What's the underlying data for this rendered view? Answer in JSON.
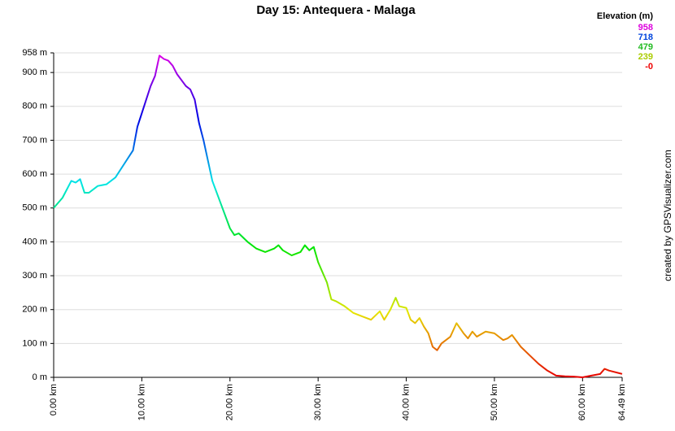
{
  "chart_data": {
    "type": "line",
    "title": "Day 15: Antequera - Malaga",
    "credit": "created by GPSVisualizer.com",
    "legend": {
      "title": "Elevation (m)",
      "entries": [
        {
          "value": 958,
          "label": "958",
          "color": "#dd00dd"
        },
        {
          "value": 718,
          "label": "718",
          "color": "#0044dd"
        },
        {
          "value": 479,
          "label": "479",
          "color": "#22bb22"
        },
        {
          "value": 239,
          "label": "239",
          "color": "#aacc00"
        },
        {
          "value": 0,
          "label": "-0",
          "color": "#ee0000"
        }
      ]
    },
    "grid": true,
    "xlim": [
      0,
      64.49
    ],
    "ylim": [
      0,
      958
    ],
    "xticks": [
      {
        "value": 0,
        "label": "0.00 km"
      },
      {
        "value": 10,
        "label": "10.00 km"
      },
      {
        "value": 20,
        "label": "20.00 km"
      },
      {
        "value": 30,
        "label": "30.00 km"
      },
      {
        "value": 40,
        "label": "40.00 km"
      },
      {
        "value": 50,
        "label": "50.00 km"
      },
      {
        "value": 60,
        "label": "60.00 km"
      },
      {
        "value": 64.49,
        "label": "64.49 km"
      }
    ],
    "yticks": [
      {
        "value": 0,
        "label": "0 m"
      },
      {
        "value": 100,
        "label": "100 m"
      },
      {
        "value": 200,
        "label": "200 m"
      },
      {
        "value": 300,
        "label": "300 m"
      },
      {
        "value": 400,
        "label": "400 m"
      },
      {
        "value": 500,
        "label": "500 m"
      },
      {
        "value": 600,
        "label": "600 m"
      },
      {
        "value": 700,
        "label": "700 m"
      },
      {
        "value": 800,
        "label": "800 m"
      },
      {
        "value": 900,
        "label": "900 m"
      },
      {
        "value": 958,
        "label": "958 m"
      }
    ],
    "series": [
      {
        "name": "Elevation",
        "x": [
          0,
          1,
          2,
          2.5,
          3,
          3.5,
          4,
          5,
          6,
          7,
          8,
          9,
          9.5,
          10,
          10.5,
          11,
          11.5,
          12,
          12.5,
          13,
          13.5,
          14,
          15,
          15.5,
          16,
          16.5,
          17,
          17.5,
          18,
          19,
          20,
          20.5,
          21,
          22,
          23,
          24,
          25,
          25.5,
          26,
          27,
          28,
          28.5,
          29,
          29.5,
          30,
          31,
          31.5,
          32,
          33,
          34,
          35,
          36,
          37,
          37.5,
          38.2,
          38.8,
          39.2,
          40,
          40.5,
          41,
          41.5,
          42,
          42.5,
          43,
          43.5,
          44,
          45,
          45.7,
          46.5,
          47,
          47.5,
          48,
          49,
          50,
          51,
          51.5,
          52,
          53,
          54,
          55,
          56,
          57,
          58,
          59,
          60,
          61,
          62,
          62.5,
          63,
          64.49
        ],
        "values": [
          500,
          530,
          580,
          575,
          585,
          545,
          545,
          565,
          570,
          590,
          630,
          670,
          740,
          780,
          820,
          860,
          890,
          950,
          940,
          935,
          920,
          895,
          860,
          850,
          820,
          750,
          700,
          640,
          580,
          510,
          440,
          420,
          425,
          400,
          380,
          370,
          380,
          390,
          375,
          360,
          370,
          390,
          375,
          385,
          340,
          280,
          230,
          225,
          210,
          190,
          180,
          170,
          195,
          170,
          200,
          235,
          210,
          205,
          170,
          160,
          175,
          150,
          130,
          90,
          80,
          100,
          120,
          160,
          130,
          115,
          135,
          120,
          135,
          130,
          110,
          115,
          125,
          90,
          65,
          40,
          20,
          5,
          3,
          2,
          0,
          5,
          10,
          25,
          20,
          10
        ]
      }
    ]
  }
}
